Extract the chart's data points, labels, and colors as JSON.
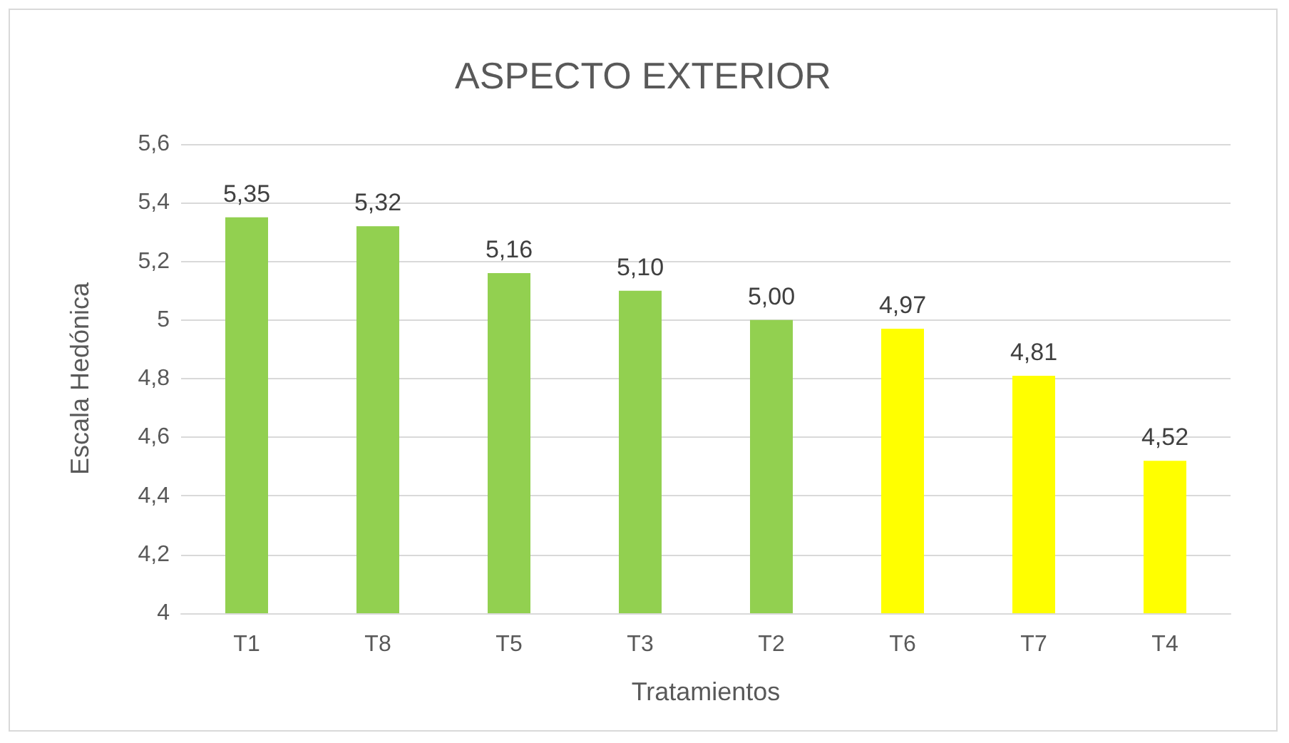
{
  "chart_data": {
    "type": "bar",
    "title": "ASPECTO EXTERIOR",
    "xlabel": "Tratamientos",
    "ylabel": "Escala Hedónica",
    "categories": [
      "T1",
      "T8",
      "T5",
      "T3",
      "T2",
      "T6",
      "T7",
      "T4"
    ],
    "values": [
      5.35,
      5.32,
      5.16,
      5.1,
      5.0,
      4.97,
      4.81,
      4.52
    ],
    "colors": [
      "#92d050",
      "#92d050",
      "#92d050",
      "#92d050",
      "#92d050",
      "#ffff00",
      "#ffff00",
      "#ffff00"
    ],
    "value_labels": [
      "5,35",
      "5,32",
      "5,16",
      "5,10",
      "5,00",
      "4,97",
      "4,81",
      "4,52"
    ],
    "ylim": [
      4,
      5.6
    ],
    "yticks": [
      4,
      {
        "value": 4.2,
        "label": "4,2"
      },
      {
        "value": 4.4,
        "label": "4,4"
      },
      {
        "value": 4.6,
        "label": "4,6"
      },
      {
        "value": 4.8,
        "label": "4,8"
      },
      5,
      {
        "value": 5.2,
        "label": "5,2"
      },
      {
        "value": 5.4,
        "label": "5,4"
      },
      {
        "value": 5.6,
        "label": "5,6"
      }
    ],
    "grid": "y"
  }
}
